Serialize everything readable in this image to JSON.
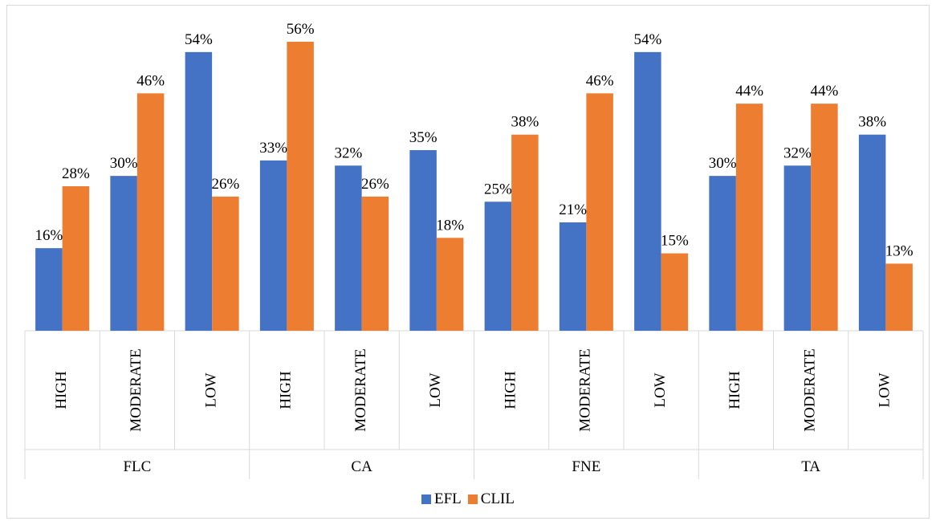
{
  "chart_data": {
    "type": "bar",
    "groups": [
      {
        "label": "FLC",
        "categories": [
          "HIGH",
          "MODERATE",
          "LOW"
        ]
      },
      {
        "label": "CA",
        "categories": [
          "HIGH",
          "MODERATE",
          "LOW"
        ]
      },
      {
        "label": "FNE",
        "categories": [
          "HIGH",
          "MODERATE",
          "LOW"
        ]
      },
      {
        "label": "TA",
        "categories": [
          "HIGH",
          "MODERATE",
          "LOW"
        ]
      }
    ],
    "series": [
      {
        "name": "EFL",
        "color": "#4472C4",
        "values": [
          16,
          30,
          54,
          33,
          32,
          35,
          25,
          21,
          54,
          30,
          32,
          38
        ]
      },
      {
        "name": "CLIL",
        "color": "#ED7D31",
        "values": [
          28,
          46,
          26,
          56,
          26,
          18,
          38,
          46,
          15,
          44,
          44,
          13
        ]
      }
    ],
    "value_suffix": "%",
    "ylim": [
      0,
      56
    ],
    "grid": false,
    "legend_position": "bottom"
  },
  "legend": {
    "efl_label": "EFL",
    "clil_label": "CLIL"
  }
}
